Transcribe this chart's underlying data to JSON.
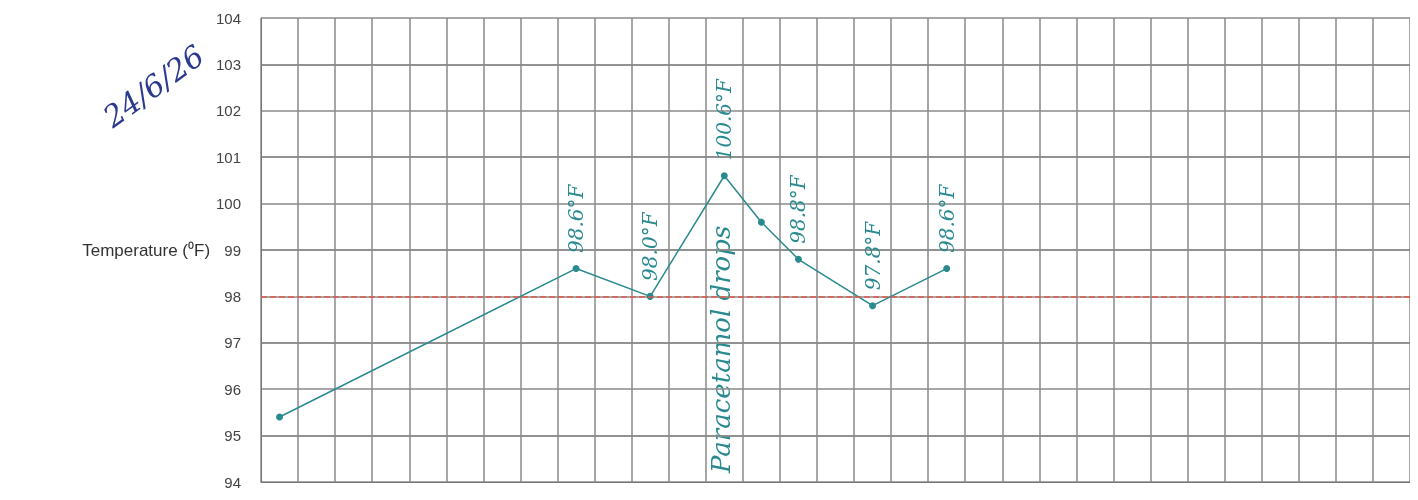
{
  "chart_data": {
    "type": "line",
    "ylabel": "Temperature (⁰F)",
    "categories": [
      null,
      null,
      null,
      null,
      null,
      null,
      null,
      null,
      null,
      null,
      null,
      null,
      null,
      null,
      null,
      null,
      null,
      null,
      null,
      null,
      null,
      null,
      null,
      null,
      null,
      null,
      null,
      null,
      null,
      null,
      null
    ],
    "series": [
      {
        "color": "#2a8a8f",
        "values": [
          95.4,
          null,
          null,
          null,
          null,
          null,
          null,
          null,
          98.6,
          null,
          98.0,
          null,
          100.6,
          99.6,
          98.8,
          null,
          97.8,
          null,
          98.6,
          null,
          null,
          null,
          null,
          null,
          null,
          null,
          null,
          null,
          null,
          null,
          null
        ],
        "value_labels": [
          null,
          null,
          null,
          null,
          null,
          null,
          null,
          null,
          "98.6°F",
          null,
          "98.0°F",
          null,
          "100.6°F",
          null,
          "98.8°F",
          null,
          "97.8°F",
          null,
          "98.6°F",
          null,
          null,
          null,
          null,
          null,
          null,
          null,
          null,
          null,
          null,
          null,
          null
        ]
      }
    ],
    "ylim": [
      94,
      104
    ],
    "yticks": [
      94,
      95,
      96,
      97,
      98,
      99,
      100,
      101,
      102,
      103,
      104
    ],
    "grid": true,
    "tick_labels": "y",
    "marker": "circle",
    "line_style": "solid",
    "ref_lines": [
      {
        "axis": "y",
        "value": 98,
        "color": "#e05a4a",
        "line_style": "dashed"
      }
    ],
    "annotations": [
      "24/6/26",
      "Paracetamol drops"
    ]
  }
}
